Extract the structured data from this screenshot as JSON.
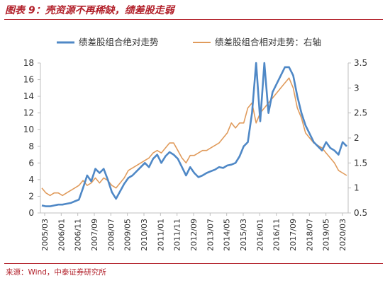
{
  "header": {
    "title": "图表 9：壳资源不再稀缺，绩差股走弱"
  },
  "footer": {
    "source": "来源：Wind，中泰证券研究所"
  },
  "colors": {
    "title": "#b2202a",
    "abs_series": "#4f88c6",
    "rel_series": "#e09b5c",
    "axis": "#bfbfbf"
  },
  "chart_data": {
    "type": "line",
    "title": "",
    "legend_position": "top",
    "grid": false,
    "x_tick_labels": [
      "2005/03",
      "2006/01",
      "2006/11",
      "2007/09",
      "2008/07",
      "2009/05",
      "2010/03",
      "2011/01",
      "2011/11",
      "2012/09",
      "2013/07",
      "2014/05",
      "2015/03",
      "2016/01",
      "2016/11",
      "2017/09",
      "2018/07",
      "2019/05",
      "2020/03"
    ],
    "y_left": {
      "min": 0,
      "max": 18,
      "ticks": [
        "0",
        "2",
        "4",
        "6",
        "8",
        "10",
        "12",
        "14",
        "16",
        "18"
      ]
    },
    "y_right": {
      "min": 0.5,
      "max": 3.5,
      "ticks": [
        "0.5",
        "1",
        "1.5",
        "2",
        "2.5",
        "3",
        "3.5"
      ]
    },
    "series": [
      {
        "name": "绩差股组合绝对走势",
        "axis": "left",
        "values": [
          0.9,
          0.8,
          0.8,
          0.9,
          1.0,
          1.0,
          1.1,
          1.2,
          1.4,
          1.6,
          3.0,
          4.5,
          3.8,
          5.3,
          4.8,
          5.3,
          4.0,
          2.5,
          1.7,
          2.6,
          3.5,
          4.2,
          4.5,
          5.0,
          5.5,
          6.0,
          5.5,
          6.5,
          7.0,
          6.0,
          6.8,
          7.3,
          7.0,
          6.5,
          5.5,
          4.5,
          5.5,
          4.8,
          4.3,
          4.5,
          4.8,
          5.0,
          5.2,
          5.5,
          5.4,
          5.7,
          5.8,
          6.0,
          6.8,
          8.0,
          8.5,
          12.0,
          18.0,
          11.0,
          18.0,
          12.0,
          14.5,
          15.5,
          16.5,
          17.5,
          17.5,
          16.5,
          14.0,
          12.0,
          10.5,
          9.5,
          8.5,
          8.0,
          7.5,
          8.5,
          7.8,
          7.5,
          7.0,
          8.5,
          8.0
        ]
      },
      {
        "name": "绩差股组合相对走势：右轴",
        "axis": "right",
        "values": [
          1.0,
          0.9,
          0.85,
          0.9,
          0.9,
          0.85,
          0.9,
          0.95,
          1.0,
          1.05,
          1.15,
          1.05,
          1.1,
          1.2,
          1.1,
          1.2,
          1.15,
          1.05,
          1.0,
          1.1,
          1.2,
          1.35,
          1.4,
          1.45,
          1.5,
          1.55,
          1.6,
          1.7,
          1.75,
          1.7,
          1.8,
          1.9,
          1.9,
          1.75,
          1.6,
          1.5,
          1.65,
          1.65,
          1.7,
          1.75,
          1.75,
          1.8,
          1.85,
          1.9,
          2.0,
          2.1,
          2.3,
          2.2,
          2.3,
          2.3,
          2.6,
          2.7,
          2.3,
          2.5,
          2.6,
          2.7,
          2.8,
          2.9,
          3.0,
          3.1,
          3.2,
          3.0,
          2.6,
          2.4,
          2.1,
          2.0,
          1.9,
          1.85,
          1.8,
          1.7,
          1.6,
          1.5,
          1.35,
          1.3,
          1.25
        ]
      }
    ]
  }
}
